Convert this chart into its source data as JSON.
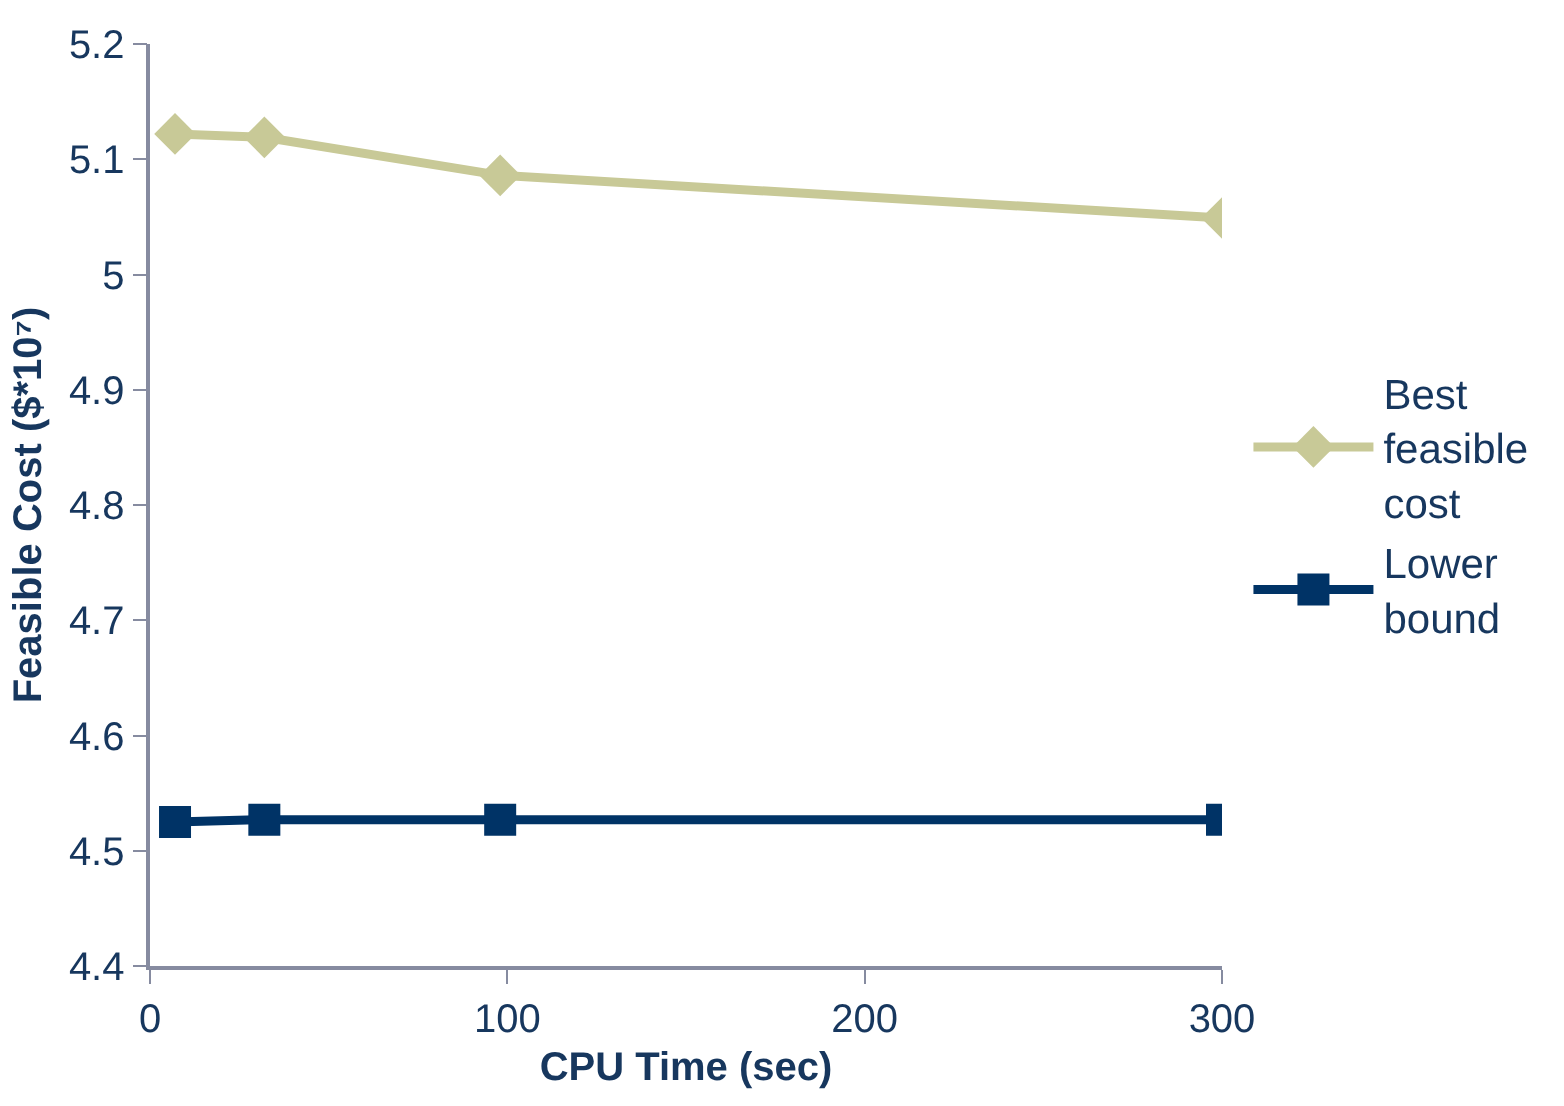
{
  "chart_data": {
    "type": "line",
    "xlabel": "CPU Time (sec)",
    "ylabel": "Feasible Cost ($*10⁷)",
    "series": [
      {
        "name": "Best feasible cost",
        "color": "#c8c997",
        "marker": "diamond",
        "x": [
          7,
          32,
          98,
          300
        ],
        "values": [
          5.122,
          5.119,
          5.086,
          5.049
        ]
      },
      {
        "name": "Lower bound",
        "color": "#003366",
        "marker": "square",
        "x": [
          7,
          32,
          98,
          300
        ],
        "values": [
          4.525,
          4.527,
          4.527,
          4.527
        ]
      }
    ],
    "xlim": [
      0,
      300
    ],
    "xticks": [
      0,
      100,
      200,
      300
    ],
    "ylim": [
      4.4,
      5.2
    ],
    "yticks": [
      4.4,
      4.5,
      4.6,
      4.7,
      4.8,
      4.9,
      5,
      5.1,
      5.2
    ],
    "legend": "right",
    "line_style": "solid"
  }
}
